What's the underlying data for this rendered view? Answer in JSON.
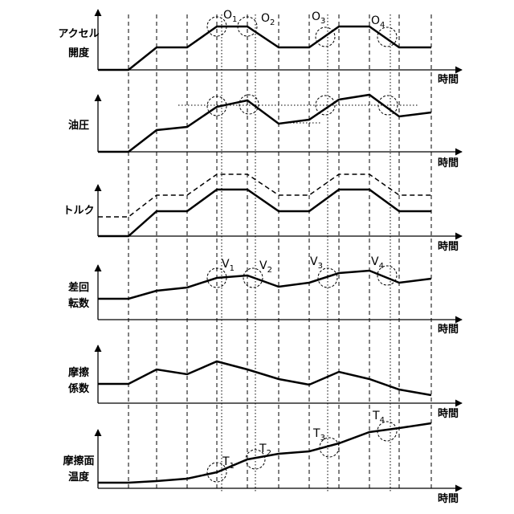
{
  "panels": [
    {
      "label": [
        "アクセル",
        "開度"
      ],
      "time_label": "時間",
      "annotations": [
        {
          "letter": "O",
          "index": "1"
        },
        {
          "letter": "O",
          "index": "2"
        },
        {
          "letter": "O",
          "index": "3"
        },
        {
          "letter": "O",
          "index": "4"
        }
      ]
    },
    {
      "label": [
        "油圧"
      ],
      "time_label": "時間"
    },
    {
      "label": [
        "トルク"
      ],
      "time_label": "時間"
    },
    {
      "label": [
        "差回",
        "転数"
      ],
      "time_label": "時間",
      "annotations": [
        {
          "letter": "V",
          "index": "1"
        },
        {
          "letter": "V",
          "index": "2"
        },
        {
          "letter": "V",
          "index": "3"
        },
        {
          "letter": "V",
          "index": "4"
        }
      ]
    },
    {
      "label": [
        "摩擦",
        "係数"
      ],
      "time_label": "時間"
    },
    {
      "label": [
        "摩擦面",
        "温度"
      ],
      "time_label": "時間",
      "annotations": [
        {
          "letter": "T",
          "index": "1"
        },
        {
          "letter": "T",
          "index": "2"
        },
        {
          "letter": "T",
          "index": "3"
        },
        {
          "letter": "T",
          "index": "4"
        }
      ]
    }
  ]
}
